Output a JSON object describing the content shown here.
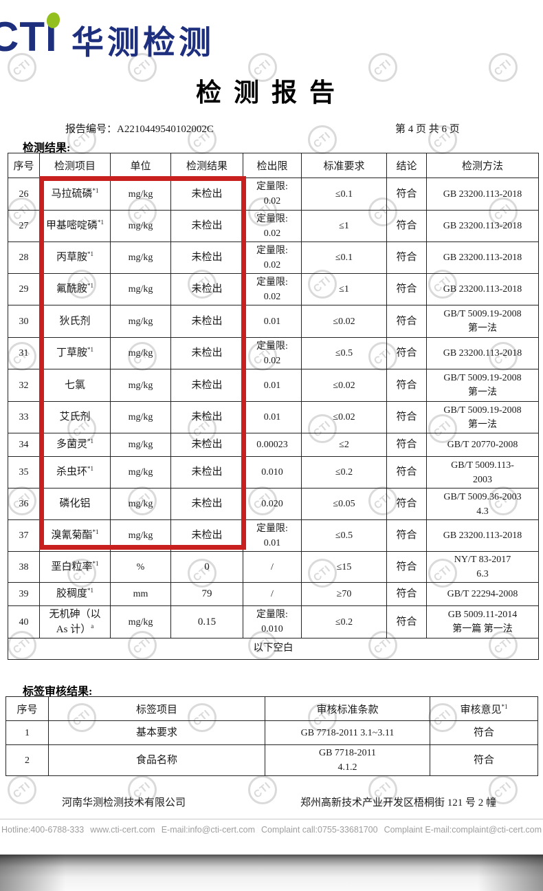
{
  "branding": {
    "logo_text": "CTI",
    "logo_cn": "华测检测",
    "watermark_text": "CTI",
    "navy": "#1e2f7e",
    "green": "#93c01f",
    "highlight_red": "#c7201f"
  },
  "title": "检测报告",
  "meta": {
    "report_no": "报告编号：A2210449540102002C",
    "page_info": "第 4 页 共 6 页"
  },
  "results_section": {
    "heading": "检测结果:",
    "columns": [
      "序号",
      "检测项目",
      "单位",
      "检测结果",
      "检出限",
      "标准要求",
      "结论",
      "检测方法"
    ],
    "rows": [
      {
        "no": "26",
        "item": [
          "马拉硫磷"
        ],
        "item_sup": "*1",
        "unit": "mg/kg",
        "result": "未检出",
        "lod": [
          "定量限:",
          "0.02"
        ],
        "standard": "≤0.1",
        "conclusion": "符合",
        "method": [
          "GB 23200.113-2018"
        ]
      },
      {
        "no": "27",
        "item": [
          "甲基嘧啶磷"
        ],
        "item_sup": "*1",
        "unit": "mg/kg",
        "result": "未检出",
        "lod": [
          "定量限:",
          "0.02"
        ],
        "standard": "≤1",
        "conclusion": "符合",
        "method": [
          "GB 23200.113-2018"
        ]
      },
      {
        "no": "28",
        "item": [
          "丙草胺"
        ],
        "item_sup": "*1",
        "unit": "mg/kg",
        "result": "未检出",
        "lod": [
          "定量限:",
          "0.02"
        ],
        "standard": "≤0.1",
        "conclusion": "符合",
        "method": [
          "GB 23200.113-2018"
        ]
      },
      {
        "no": "29",
        "item": [
          "氟酰胺"
        ],
        "item_sup": "*1",
        "unit": "mg/kg",
        "result": "未检出",
        "lod": [
          "定量限:",
          "0.02"
        ],
        "standard": "≤1",
        "conclusion": "符合",
        "method": [
          "GB 23200.113-2018"
        ]
      },
      {
        "no": "30",
        "item": [
          "狄氏剂"
        ],
        "item_sup": "",
        "unit": "mg/kg",
        "result": "未检出",
        "lod": [
          "0.01"
        ],
        "standard": "≤0.02",
        "conclusion": "符合",
        "method": [
          "GB/T 5009.19-2008",
          "第一法"
        ]
      },
      {
        "no": "31",
        "item": [
          "丁草胺"
        ],
        "item_sup": "*1",
        "unit": "mg/kg",
        "result": "未检出",
        "lod": [
          "定量限:",
          "0.02"
        ],
        "standard": "≤0.5",
        "conclusion": "符合",
        "method": [
          "GB 23200.113-2018"
        ]
      },
      {
        "no": "32",
        "item": [
          "七氯"
        ],
        "item_sup": "",
        "unit": "mg/kg",
        "result": "未检出",
        "lod": [
          "0.01"
        ],
        "standard": "≤0.02",
        "conclusion": "符合",
        "method": [
          "GB/T 5009.19-2008",
          "第一法"
        ]
      },
      {
        "no": "33",
        "item": [
          "艾氏剂"
        ],
        "item_sup": "",
        "unit": "mg/kg",
        "result": "未检出",
        "lod": [
          "0.01"
        ],
        "standard": "≤0.02",
        "conclusion": "符合",
        "method": [
          "GB/T 5009.19-2008",
          "第一法"
        ]
      },
      {
        "no": "34",
        "item": [
          "多菌灵"
        ],
        "item_sup": "*1",
        "unit": "mg/kg",
        "result": "未检出",
        "lod": [
          "0.00023"
        ],
        "standard": "≤2",
        "conclusion": "符合",
        "method": [
          "GB/T 20770-2008"
        ]
      },
      {
        "no": "35",
        "item": [
          "杀虫环"
        ],
        "item_sup": "*1",
        "unit": "mg/kg",
        "result": "未检出",
        "lod": [
          "0.010"
        ],
        "standard": "≤0.2",
        "conclusion": "符合",
        "method": [
          "GB/T 5009.113-",
          "2003"
        ]
      },
      {
        "no": "36",
        "item": [
          "磷化铝"
        ],
        "item_sup": "",
        "unit": "mg/kg",
        "result": "未检出",
        "lod": [
          "0.020"
        ],
        "standard": "≤0.05",
        "conclusion": "符合",
        "method": [
          "GB/T 5009.36-2003",
          "4.3"
        ]
      },
      {
        "no": "37",
        "item": [
          "溴氰菊酯"
        ],
        "item_sup": "*1",
        "unit": "mg/kg",
        "result": "未检出",
        "lod": [
          "定量限:",
          "0.01"
        ],
        "standard": "≤0.5",
        "conclusion": "符合",
        "method": [
          "GB 23200.113-2018"
        ]
      },
      {
        "no": "38",
        "item": [
          "垩白粒率"
        ],
        "item_sup": "*1",
        "unit": "%",
        "result": "0",
        "lod": [
          "/"
        ],
        "standard": "≤15",
        "conclusion": "符合",
        "method": [
          "NY/T 83-2017",
          "6.3"
        ]
      },
      {
        "no": "39",
        "item": [
          "胶稠度"
        ],
        "item_sup": "*1",
        "unit": "mm",
        "result": "79",
        "lod": [
          "/"
        ],
        "standard": "≥70",
        "conclusion": "符合",
        "method": [
          "GB/T 22294-2008"
        ]
      },
      {
        "no": "40",
        "item": [
          "无机砷（以",
          "As 计）"
        ],
        "item_sup": "a",
        "unit": "mg/kg",
        "result": "0.15",
        "lod": [
          "定量限:",
          "0.010"
        ],
        "standard": "≤0.2",
        "conclusion": "符合",
        "method": [
          "GB 5009.11-2014",
          "第一篇 第一法"
        ]
      }
    ],
    "blank_note": "以下空白"
  },
  "label_section": {
    "heading": "标签审核结果:",
    "columns": [
      "序号",
      "标签项目",
      "审核标准条款",
      "审核意见"
    ],
    "col4_sup": "*1",
    "rows": [
      {
        "no": "1",
        "item": "基本要求",
        "clause": [
          "GB 7718-2011 3.1~3.11"
        ],
        "opinion": "符合"
      },
      {
        "no": "2",
        "item": "食品名称",
        "clause": [
          "GB 7718-2011",
          "4.1.2"
        ],
        "opinion": "符合"
      }
    ]
  },
  "footer": {
    "company": "河南华测检测技术有限公司",
    "address": "郑州高新技术产业开发区梧桐街 121 号 2 幢"
  },
  "contact_bar": {
    "items": [
      "Hotline:400-6788-333",
      "www.cti-cert.com",
      "E-mail:info@cti-cert.com",
      "Complaint call:0755-33681700",
      "Complaint E-mail:complaint@cti-cert.com"
    ]
  }
}
